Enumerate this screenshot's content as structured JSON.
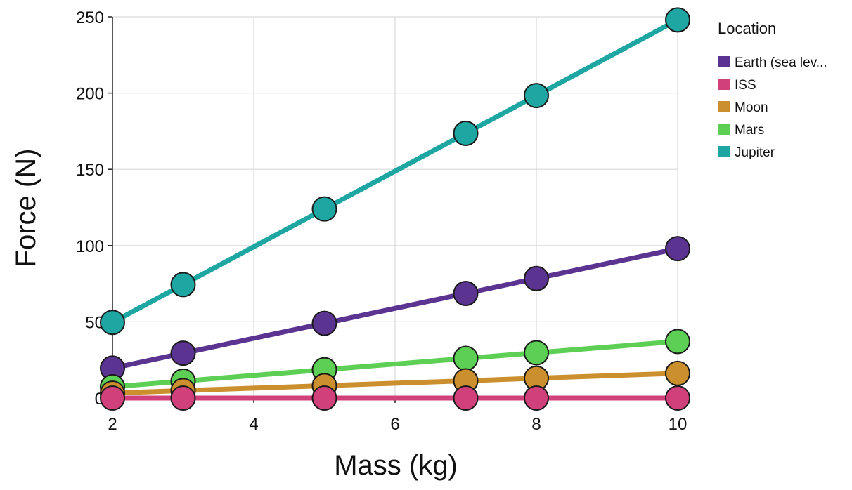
{
  "chart_data": {
    "type": "line",
    "title": "",
    "xlabel": "Mass (kg)",
    "ylabel": "Force (N)",
    "xlim": [
      2,
      10
    ],
    "ylim": [
      0,
      250
    ],
    "xticks": [
      "2",
      "4",
      "6",
      "8",
      "10"
    ],
    "yticks": [
      "0",
      "50",
      "100",
      "150",
      "200",
      "250"
    ],
    "grid": true,
    "legend_title": "Location",
    "legend_position": "right",
    "x": [
      2,
      3,
      5,
      7,
      8,
      10
    ],
    "series": [
      {
        "name": "Earth (sea lev...",
        "color": "#5b3391",
        "values": [
          19.6,
          29.4,
          49.0,
          68.6,
          78.4,
          98.0
        ]
      },
      {
        "name": "ISS",
        "color": "#d0407a",
        "values": [
          0,
          0,
          0,
          0,
          0,
          0
        ]
      },
      {
        "name": "Moon",
        "color": "#cc8f2e",
        "values": [
          3.2,
          4.9,
          8.1,
          11.3,
          13.0,
          16.2
        ]
      },
      {
        "name": "Mars",
        "color": "#5ccf54",
        "values": [
          7.4,
          11.1,
          18.6,
          26.0,
          29.7,
          37.1
        ]
      },
      {
        "name": "Jupiter",
        "color": "#1ea6a2",
        "values": [
          49.6,
          74.4,
          124.0,
          173.6,
          198.4,
          248.0
        ]
      }
    ],
    "draw_order": [
      "Earth (sea lev...",
      "Jupiter",
      "Mars",
      "Moon",
      "ISS"
    ]
  }
}
